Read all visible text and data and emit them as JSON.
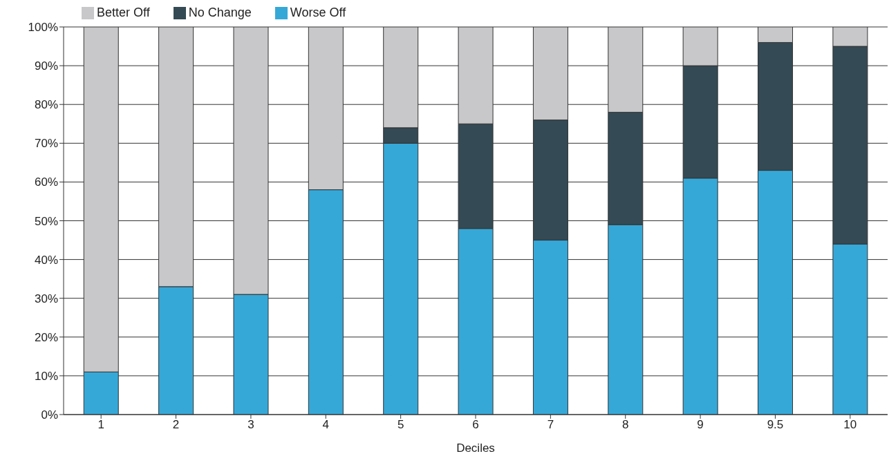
{
  "chart_data": {
    "type": "bar",
    "stacked": true,
    "xlabel": "Deciles",
    "categories": [
      "1",
      "2",
      "3",
      "4",
      "5",
      "6",
      "7",
      "8",
      "9",
      "9.5",
      "10"
    ],
    "series": [
      {
        "name": "Worse Off",
        "color": "#36a8d8",
        "values": [
          11,
          33,
          31,
          58,
          70,
          48,
          45,
          49,
          61,
          63,
          44
        ]
      },
      {
        "name": "No Change",
        "color": "#344a54",
        "values": [
          0,
          0,
          0,
          0,
          4,
          27,
          31,
          29,
          29,
          33,
          51
        ]
      },
      {
        "name": "Better Off",
        "color": "#c8c8ca",
        "values": [
          89,
          67,
          69,
          42,
          26,
          25,
          24,
          22,
          10,
          4,
          5
        ]
      }
    ],
    "ylim": [
      0,
      100
    ],
    "yticks": [
      {
        "value": 0,
        "label": "0%"
      },
      {
        "value": 10,
        "label": "10%"
      },
      {
        "value": 20,
        "label": "20%"
      },
      {
        "value": 30,
        "label": "30%"
      },
      {
        "value": 40,
        "label": "40%"
      },
      {
        "value": 50,
        "label": "50%"
      },
      {
        "value": 60,
        "label": "60%"
      },
      {
        "value": 70,
        "label": "70%"
      },
      {
        "value": 80,
        "label": "80%"
      },
      {
        "value": 90,
        "label": "90%"
      },
      {
        "value": 100,
        "label": "100%"
      }
    ],
    "grid": "y",
    "legend": "top left"
  }
}
